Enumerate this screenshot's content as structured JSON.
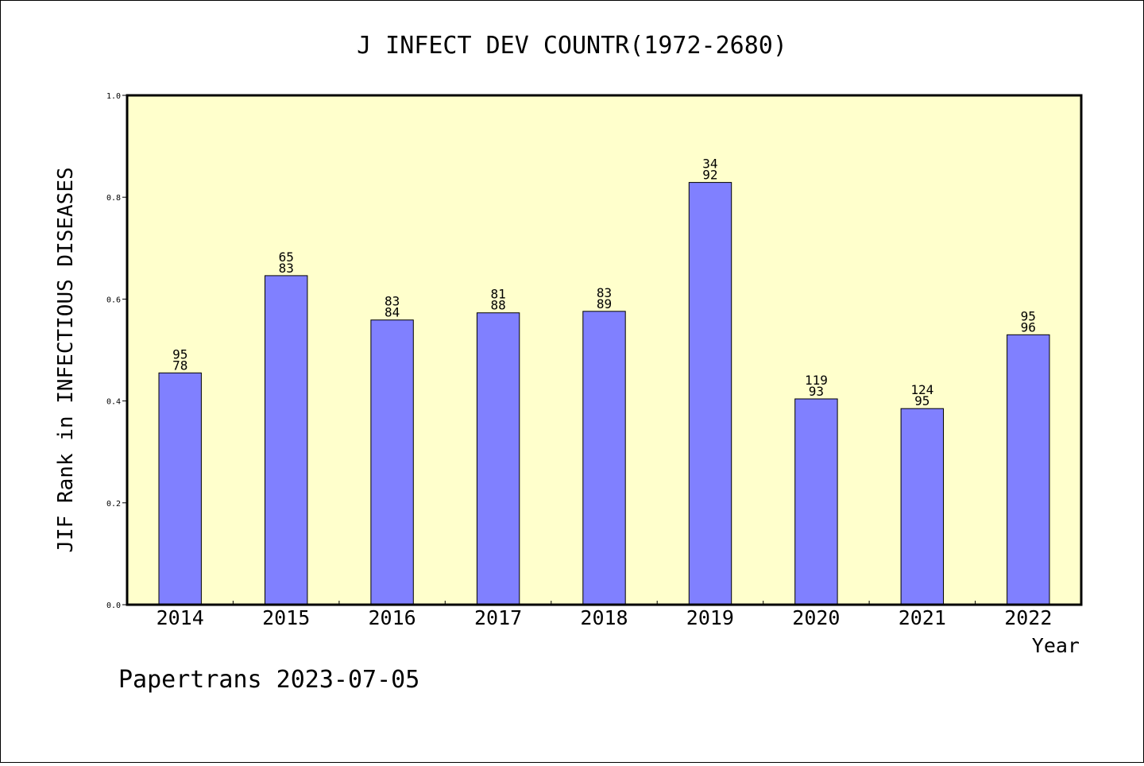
{
  "chart_data": {
    "type": "bar",
    "title": "J INFECT DEV COUNTR(1972-2680)",
    "xlabel": "Year",
    "ylabel": "JIF Rank in INFECTIOUS DISEASES",
    "ylim": [
      0,
      1.0
    ],
    "yticks": [
      "0.0",
      "0.2",
      "0.4",
      "0.6",
      "0.8",
      "1.0"
    ],
    "categories": [
      "2014",
      "2015",
      "2016",
      "2017",
      "2018",
      "2019",
      "2020",
      "2021",
      "2022"
    ],
    "values": [
      0.455,
      0.646,
      0.559,
      0.573,
      0.576,
      0.829,
      0.404,
      0.385,
      0.53
    ],
    "labels_top": [
      "95",
      "65",
      "83",
      "81",
      "83",
      "34",
      "119",
      "124",
      "95"
    ],
    "labels_bottom": [
      "78",
      "83",
      "84",
      "88",
      "89",
      "92",
      "93",
      "95",
      "96"
    ],
    "grid": false,
    "colors": {
      "bar": "#8080ff",
      "plot_bg": "#ffffcc",
      "bar_edge": "#000000"
    }
  },
  "footer": "Papertrans 2023-07-05"
}
